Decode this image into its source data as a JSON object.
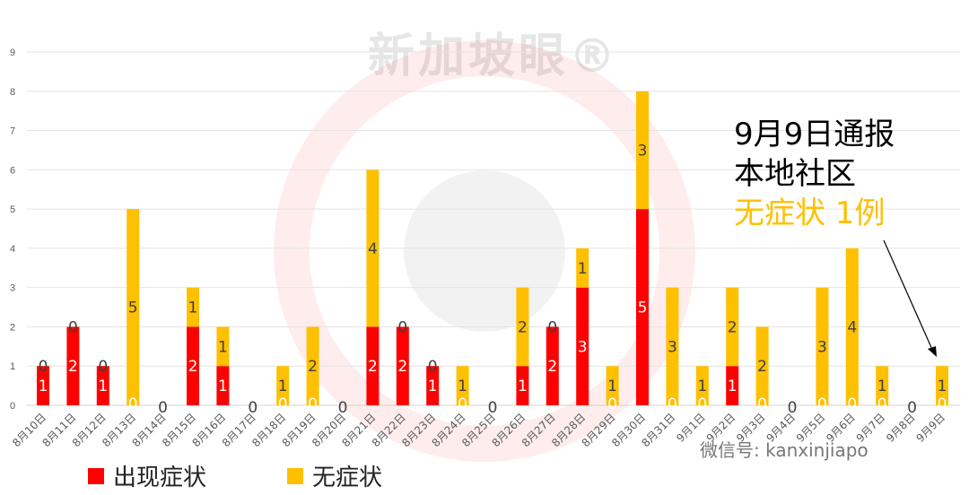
{
  "chart_data": {
    "type": "bar",
    "stacked": true,
    "categories": [
      "8月10日",
      "8月11日",
      "8月12日",
      "8月13日",
      "8月14日",
      "8月15日",
      "8月16日",
      "8月17日",
      "8月18日",
      "8月19日",
      "8月20日",
      "8月21日",
      "8月22日",
      "8月23日",
      "8月24日",
      "8月25日",
      "8月26日",
      "8月27日",
      "8月28日",
      "8月29日",
      "8月30日",
      "8月31日",
      "9月1日",
      "9月2日",
      "9月3日",
      "9月4日",
      "9月5日",
      "9月6日",
      "9月7日",
      "9月8日",
      "9月9日"
    ],
    "series": [
      {
        "name": "出现症状",
        "color": "#FF0000",
        "values": [
          1,
          2,
          1,
          0,
          0,
          2,
          1,
          0,
          0,
          0,
          0,
          2,
          2,
          1,
          0,
          0,
          1,
          2,
          3,
          0,
          5,
          0,
          0,
          1,
          0,
          0,
          0,
          0,
          0,
          0,
          0
        ]
      },
      {
        "name": "无症状",
        "color": "#FFC000",
        "values": [
          0,
          0,
          0,
          5,
          0,
          1,
          1,
          0,
          1,
          2,
          0,
          4,
          0,
          0,
          1,
          0,
          2,
          0,
          1,
          1,
          3,
          3,
          1,
          2,
          2,
          0,
          3,
          4,
          1,
          0,
          1
        ]
      }
    ],
    "ylim": [
      0,
      9
    ],
    "yticks": [
      0,
      1,
      2,
      3,
      4,
      5,
      6,
      7,
      8,
      9
    ],
    "grid": true,
    "legend": "bottom-left",
    "annotation": {
      "line1": "9月9日通报",
      "line2": "本地社区",
      "line3": "无症状 1例"
    }
  },
  "watermark": "新加坡眼®",
  "wechat": "微信号: kanxinjiapo"
}
